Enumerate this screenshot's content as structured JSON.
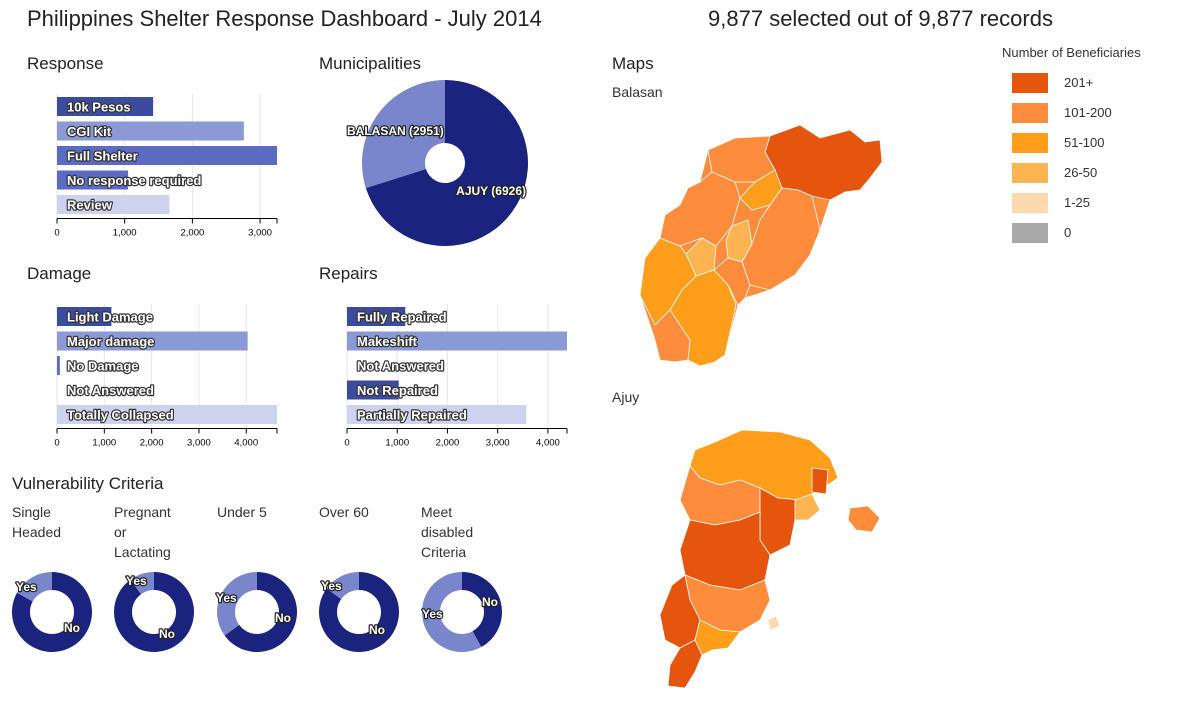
{
  "header": {
    "title": "Philippines Shelter Response Dashboard - July 2014",
    "selected_prefix": "9,877",
    "selected_mid": "selected out of",
    "selected_total": "9,877",
    "selected_suffix": "records"
  },
  "sections": {
    "response": "Response",
    "municipalities": "Municipalities",
    "maps": "Maps",
    "damage": "Damage",
    "repairs": "Repairs",
    "vulnerability": "Vulnerability Criteria"
  },
  "maps": {
    "balasan_label": "Balasan",
    "ajuy_label": "Ajuy"
  },
  "legend": {
    "title": "Number of Beneficiaries",
    "items": [
      {
        "label": "201+",
        "color": "#e6550d"
      },
      {
        "label": "101-200",
        "color": "#fd8d3c"
      },
      {
        "label": "51-100",
        "color": "#ff9e1a"
      },
      {
        "label": "26-50",
        "color": "#fdb451"
      },
      {
        "label": "1-25",
        "color": "#fdd9b0"
      },
      {
        "label": "0",
        "color": "#a8a8a8"
      }
    ]
  },
  "vuln_labels": {
    "single": "Single Headed",
    "pregnant": "Pregnant or Lactating",
    "under5": "Under 5",
    "over60": "Over 60",
    "disabled": "Meet disabled Criteria"
  },
  "chart_data": [
    {
      "id": "response",
      "type": "bar",
      "orientation": "horizontal",
      "title": "Response",
      "categories": [
        "10k Pesos",
        "CGI Kit",
        "Full Shelter",
        "No response required",
        "Review"
      ],
      "values": [
        1420,
        2760,
        3250,
        1050,
        1660
      ],
      "colors": [
        "#3b4ba0",
        "#8b99d6",
        "#5b6bc4",
        "#5b6bc4",
        "#cdd3ee"
      ],
      "xlim": [
        0,
        3250
      ],
      "ticks": [
        0,
        1000,
        2000,
        3000
      ],
      "tick_labels": [
        "0",
        "1,000",
        "2,000",
        "3,000"
      ]
    },
    {
      "id": "municipalities",
      "type": "pie",
      "title": "Municipalities",
      "slices": [
        {
          "label": "AJUY (6926)",
          "value": 6926,
          "color": "#1a237e"
        },
        {
          "label": "BALASAN (2951)",
          "value": 2951,
          "color": "#7986cb"
        }
      ]
    },
    {
      "id": "damage",
      "type": "bar",
      "orientation": "horizontal",
      "title": "Damage",
      "categories": [
        "Light Damage",
        "Major damage",
        "No Damage",
        "Not Answered",
        "Totally Collapsed"
      ],
      "values": [
        1150,
        4030,
        60,
        0,
        4650
      ],
      "colors": [
        "#3b4ba0",
        "#8b99d6",
        "#5b6bc4",
        "#5b6bc4",
        "#cdd3ee"
      ],
      "xlim": [
        0,
        4650
      ],
      "ticks": [
        0,
        1000,
        2000,
        3000,
        4000
      ],
      "tick_labels": [
        "0",
        "1,000",
        "2,000",
        "3,000",
        "4,000"
      ]
    },
    {
      "id": "repairs",
      "type": "bar",
      "orientation": "horizontal",
      "title": "Repairs",
      "categories": [
        "Fully Repaired",
        "Makeshift",
        "Not Answered",
        "Not Repaired",
        "Partially Repaired"
      ],
      "values": [
        1160,
        4380,
        0,
        1030,
        3570
      ],
      "colors": [
        "#3b4ba0",
        "#8b99d6",
        "#5b6bc4",
        "#3b4ba0",
        "#cdd3ee"
      ],
      "xlim": [
        0,
        4380
      ],
      "ticks": [
        0,
        1000,
        2000,
        3000,
        4000
      ],
      "tick_labels": [
        "0",
        "1,000",
        "2,000",
        "3,000",
        "4,000"
      ]
    },
    {
      "id": "single",
      "type": "pie",
      "title": "Single Headed",
      "slices": [
        {
          "label": "No",
          "value": 83,
          "color": "#1a237e"
        },
        {
          "label": "Yes",
          "value": 17,
          "color": "#7986cb"
        }
      ]
    },
    {
      "id": "pregnant",
      "type": "pie",
      "title": "Pregnant or Lactating",
      "slices": [
        {
          "label": "No",
          "value": 90,
          "color": "#1a237e"
        },
        {
          "label": "Yes",
          "value": 10,
          "color": "#7986cb"
        }
      ]
    },
    {
      "id": "under5",
      "type": "pie",
      "title": "Under 5",
      "slices": [
        {
          "label": "No",
          "value": 65,
          "color": "#1a237e"
        },
        {
          "label": "Yes",
          "value": 35,
          "color": "#7986cb"
        }
      ]
    },
    {
      "id": "over60",
      "type": "pie",
      "title": "Over 60",
      "slices": [
        {
          "label": "No",
          "value": 85,
          "color": "#1a237e"
        },
        {
          "label": "Yes",
          "value": 15,
          "color": "#7986cb"
        }
      ]
    },
    {
      "id": "disabled",
      "type": "pie",
      "title": "Meet disabled Criteria",
      "slices": [
        {
          "label": "No",
          "value": 42,
          "color": "#1a237e"
        },
        {
          "label": "Yes",
          "value": 58,
          "color": "#7986cb"
        }
      ]
    }
  ]
}
